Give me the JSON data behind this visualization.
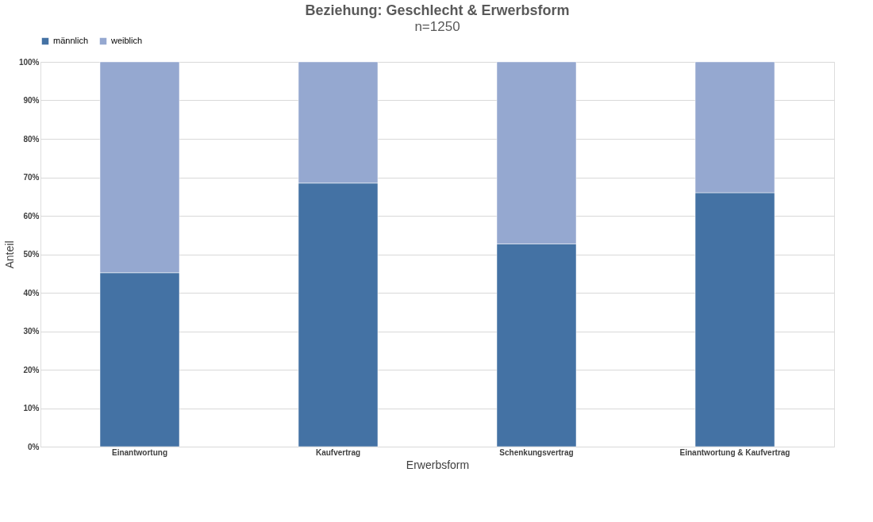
{
  "chart_data": {
    "type": "bar",
    "title": "Beziehung: Geschlecht & Erwerbsform",
    "subtitle": "n=1250",
    "xlabel": "Erwerbsform",
    "ylabel": "Anteil",
    "categories": [
      "Einantwortung",
      "Kaufvertrag",
      "Schenkungsvertrag",
      "Einantwortung & Kaufvertrag"
    ],
    "series": [
      {
        "name": "männlich",
        "color": "#4472a4",
        "values": [
          45.2,
          68.5,
          52.7,
          66.0
        ]
      },
      {
        "name": "weiblich",
        "color": "#95a8d0",
        "values": [
          54.8,
          31.5,
          47.3,
          34.0
        ]
      }
    ],
    "stacked": true,
    "ylim": [
      0,
      100
    ],
    "yticks": [
      {
        "value": 0,
        "label": "0%"
      },
      {
        "value": 10,
        "label": "10%"
      },
      {
        "value": 20,
        "label": "20%"
      },
      {
        "value": 30,
        "label": "30%"
      },
      {
        "value": 40,
        "label": "40%"
      },
      {
        "value": 50,
        "label": "50%"
      },
      {
        "value": 60,
        "label": "60%"
      },
      {
        "value": 70,
        "label": "70%"
      },
      {
        "value": 80,
        "label": "80%"
      },
      {
        "value": 90,
        "label": "90%"
      },
      {
        "value": 100,
        "label": "100%"
      }
    ],
    "grid": "y",
    "legend": "top"
  }
}
